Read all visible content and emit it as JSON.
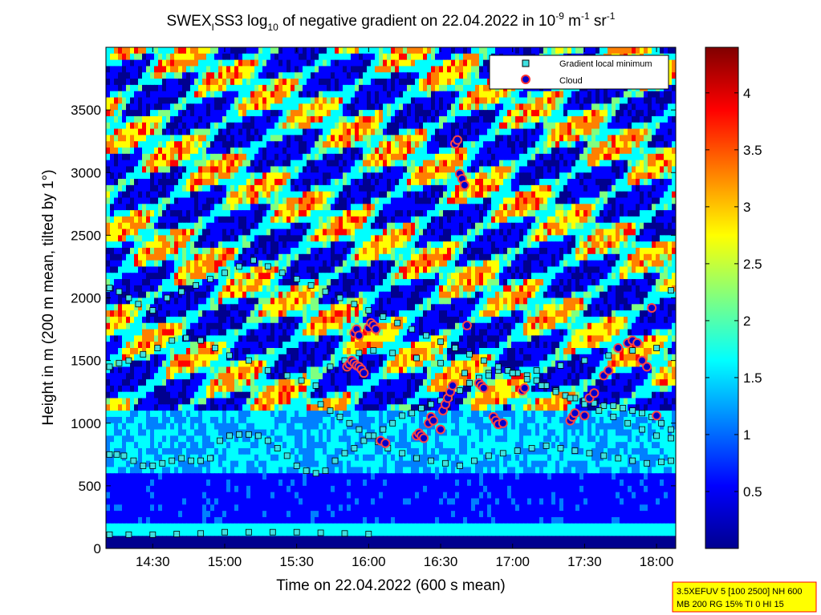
{
  "chart_data": {
    "type": "heatmap",
    "title": {
      "prefix": "SWEX",
      "sub1": "I",
      "mid": "SS3 log",
      "sub2": "10",
      "after_sub": " of negative gradient on 22.04.2022 in 10",
      "sup1": "-9",
      "unit_m": " m",
      "sup2": "-1",
      "unit_sr": " sr",
      "sup3": "-1"
    },
    "xlabel": "Time on 22.04.2022 (600 s mean)",
    "ylabel": "Height in m (200 m mean, tilted by 1°)",
    "x_ticks": [
      "14:30",
      "15:00",
      "15:30",
      "16:00",
      "16:30",
      "17:00",
      "17:30",
      "18:00"
    ],
    "x_tick_minutes": [
      870,
      900,
      930,
      960,
      990,
      1020,
      1050,
      1080
    ],
    "xlim_minutes": [
      850.5,
      1088
    ],
    "y_ticks": [
      0,
      500,
      1000,
      1500,
      2000,
      2500,
      3000,
      3500
    ],
    "ylim": [
      0,
      4000
    ],
    "colorbar": {
      "ticks": [
        "0.5",
        "1",
        "1.5",
        "2",
        "2.5",
        "3",
        "3.5",
        "4"
      ],
      "tick_values": [
        0.5,
        1,
        1.5,
        2,
        2.5,
        3,
        3.5,
        4
      ],
      "range": [
        0,
        4.4
      ],
      "colormap": [
        "#00008f",
        "#0000ff",
        "#0080ff",
        "#00ffff",
        "#80ff80",
        "#ffff00",
        "#ff8000",
        "#ff0000",
        "#800000"
      ]
    },
    "legend": {
      "position": "top-right",
      "entries": [
        {
          "label": "Gradient local minimum",
          "marker": "square",
          "color": "#40e0e0"
        },
        {
          "label": "Cloud",
          "marker": "circle",
          "color": "#0000cc",
          "edge": "#ff3333"
        }
      ]
    },
    "series": [
      {
        "name": "Gradient local minimum",
        "x_minutes": [
          852,
          855,
          858,
          862,
          866,
          870,
          874,
          878,
          882,
          886,
          890,
          894,
          898,
          902,
          906,
          910,
          914,
          918,
          922,
          926,
          930,
          934,
          938,
          942,
          946,
          950,
          954,
          958,
          962,
          966,
          970,
          974,
          978,
          982,
          986,
          990,
          994,
          998,
          1002,
          1006,
          1010,
          1014,
          1018,
          1022,
          1026,
          1030,
          1034,
          1038,
          1042,
          1046,
          1050,
          1054,
          1058,
          1062,
          1066,
          1070,
          1074,
          1078,
          1082,
          1086,
          852,
          856,
          860,
          866,
          872,
          878,
          884,
          890,
          896,
          902,
          910,
          918,
          926,
          932,
          938,
          944,
          950,
          956,
          962,
          970,
          980,
          990,
          1000,
          1010,
          1020,
          1030,
          1040,
          1050,
          1060,
          1070,
          1080,
          852,
          856,
          860,
          864,
          870,
          876,
          882,
          888,
          894,
          900,
          906,
          912,
          918,
          924,
          930,
          936,
          942,
          948,
          954,
          960,
          966,
          972,
          978,
          984,
          990,
          996,
          1002,
          1008,
          1014,
          1020,
          1026,
          1032,
          1038,
          1044,
          1050,
          1056,
          1062,
          1068,
          1074,
          1080,
          1086,
          940,
          944,
          948,
          952,
          956,
          960,
          964,
          968,
          974,
          980,
          986,
          992,
          998,
          1004,
          1010,
          1016,
          1022,
          1028,
          1034,
          1040,
          1046,
          1052,
          1058,
          1064,
          1070,
          1076,
          1082,
          1086,
          852,
          860,
          870,
          880,
          890,
          900,
          910,
          920,
          930,
          940,
          950,
          960,
          1086
        ],
        "y": [
          750,
          750,
          740,
          700,
          660,
          660,
          680,
          700,
          720,
          700,
          700,
          720,
          860,
          900,
          910,
          910,
          900,
          860,
          800,
          740,
          660,
          620,
          600,
          620,
          700,
          760,
          800,
          860,
          900,
          950,
          1000,
          1060,
          1080,
          1120,
          1150,
          1180,
          1200,
          1260,
          1320,
          1360,
          1400,
          1420,
          1420,
          1400,
          1380,
          1340,
          1300,
          1260,
          1220,
          1200,
          1180,
          1160,
          1140,
          1140,
          1120,
          1100,
          1080,
          1050,
          1000,
          950,
          1450,
          1480,
          1500,
          1550,
          1600,
          1660,
          1680,
          1660,
          1600,
          1540,
          1500,
          1420,
          1380,
          1340,
          1300,
          1450,
          1500,
          1560,
          1580,
          1560,
          1520,
          1480,
          1400,
          1380,
          1400,
          1420,
          1460,
          1500,
          1540,
          1580,
          1600,
          2080,
          2050,
          2000,
          1950,
          1900,
          2000,
          2050,
          2100,
          2150,
          2200,
          2250,
          2300,
          2250,
          2200,
          2150,
          2100,
          2050,
          2000,
          1950,
          1900,
          1850,
          1800,
          1750,
          1700,
          1650,
          1600,
          1550,
          1500,
          1450,
          1400,
          1350,
          1300,
          1250,
          1200,
          1150,
          1100,
          1050,
          1000,
          950,
          900,
          880,
          1150,
          1100,
          1050,
          1000,
          950,
          900,
          850,
          800,
          760,
          720,
          700,
          680,
          660,
          700,
          740,
          760,
          780,
          800,
          820,
          800,
          780,
          760,
          740,
          720,
          700,
          680,
          690,
          700,
          110,
          110,
          110,
          115,
          120,
          130,
          130,
          130,
          130,
          125,
          120,
          115,
          2060
        ]
      },
      {
        "name": "Cloud",
        "x_minutes": [
          951,
          952,
          953,
          954,
          955,
          956,
          957,
          958,
          954,
          955,
          956,
          960,
          961,
          962,
          963,
          965,
          967,
          980,
          981,
          982,
          983,
          985,
          986,
          987,
          990,
          991,
          992,
          993,
          994,
          995,
          996,
          997,
          998,
          999,
          1000,
          1001,
          1006,
          1007,
          1008,
          1012,
          1013,
          1014,
          1016,
          1024,
          1025,
          1044,
          1045,
          1046,
          1050,
          1052,
          1054,
          1058,
          1060,
          1064,
          1068,
          1070,
          1072,
          1074,
          1076,
          1078,
          1080
        ],
        "y": [
          1450,
          1470,
          1500,
          1480,
          1460,
          1450,
          1430,
          1400,
          1720,
          1750,
          1700,
          1760,
          1800,
          1780,
          1750,
          860,
          840,
          900,
          920,
          900,
          880,
          1000,
          1050,
          1020,
          950,
          1100,
          1150,
          1200,
          1250,
          1300,
          3230,
          3260,
          2990,
          2950,
          2900,
          1780,
          1320,
          1300,
          1280,
          1050,
          1020,
          990,
          1000,
          1260,
          1280,
          1020,
          1050,
          1080,
          1060,
          1200,
          1240,
          1380,
          1420,
          1600,
          1640,
          1660,
          1640,
          1500,
          1450,
          1920,
          1060
        ]
      }
    ]
  },
  "info_box": {
    "line1": "3.5XEFUV 5 [100 2500] NH 600",
    "line2": "MB 200 RG 15% TI 0 HI 15"
  }
}
